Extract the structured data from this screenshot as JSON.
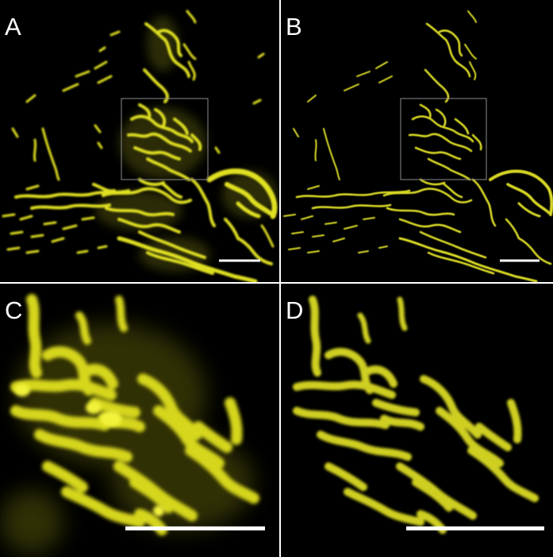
{
  "figure": {
    "background": "#ffffff",
    "signal_color": "#e6e633",
    "panels": [
      {
        "id": "A",
        "label": "A",
        "kind": "overview",
        "rendering": "raw"
      },
      {
        "id": "B",
        "label": "B",
        "kind": "overview",
        "rendering": "sharpened"
      },
      {
        "id": "C",
        "label": "C",
        "kind": "zoom",
        "rendering": "raw"
      },
      {
        "id": "D",
        "label": "D",
        "kind": "zoom",
        "rendering": "sharpened"
      }
    ]
  }
}
